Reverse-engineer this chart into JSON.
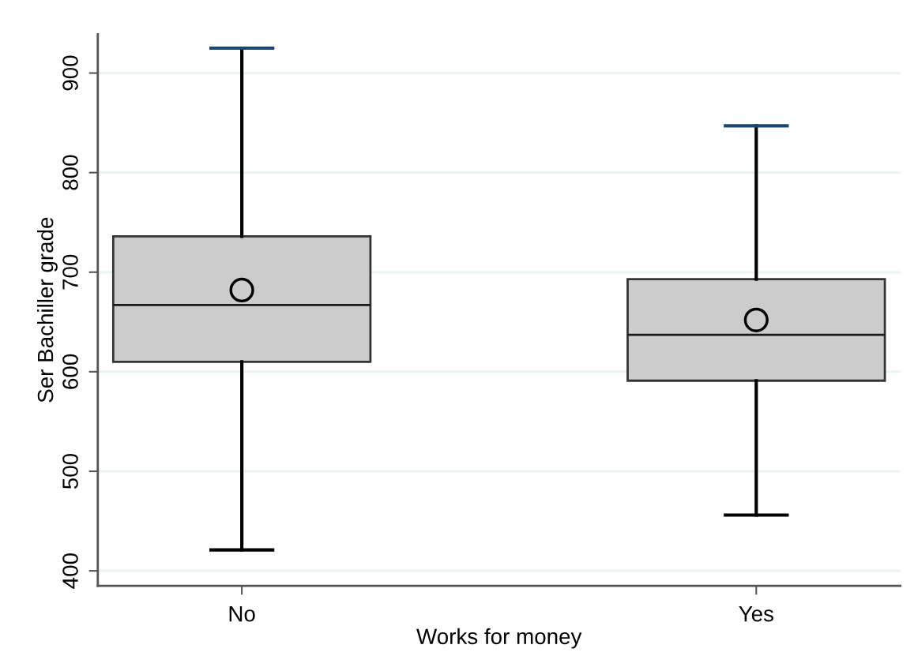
{
  "chart_data": {
    "type": "box",
    "xlabel": "Works for money",
    "ylabel": "Ser Bachiller grade",
    "categories": [
      "No",
      "Yes"
    ],
    "series": [
      {
        "color": "#cccccc",
        "boxes": [
          {
            "low": 421,
            "q1": 610,
            "median": 667,
            "q3": 736,
            "high": 925,
            "mean": 682
          },
          {
            "low": 456,
            "q1": 591,
            "median": 637,
            "q3": 693,
            "high": 847,
            "mean": 652
          }
        ]
      }
    ],
    "ylim": [
      385,
      939
    ],
    "yticks": [
      400,
      500,
      600,
      700,
      800,
      900
    ],
    "grid": "y",
    "marker": "circle"
  }
}
